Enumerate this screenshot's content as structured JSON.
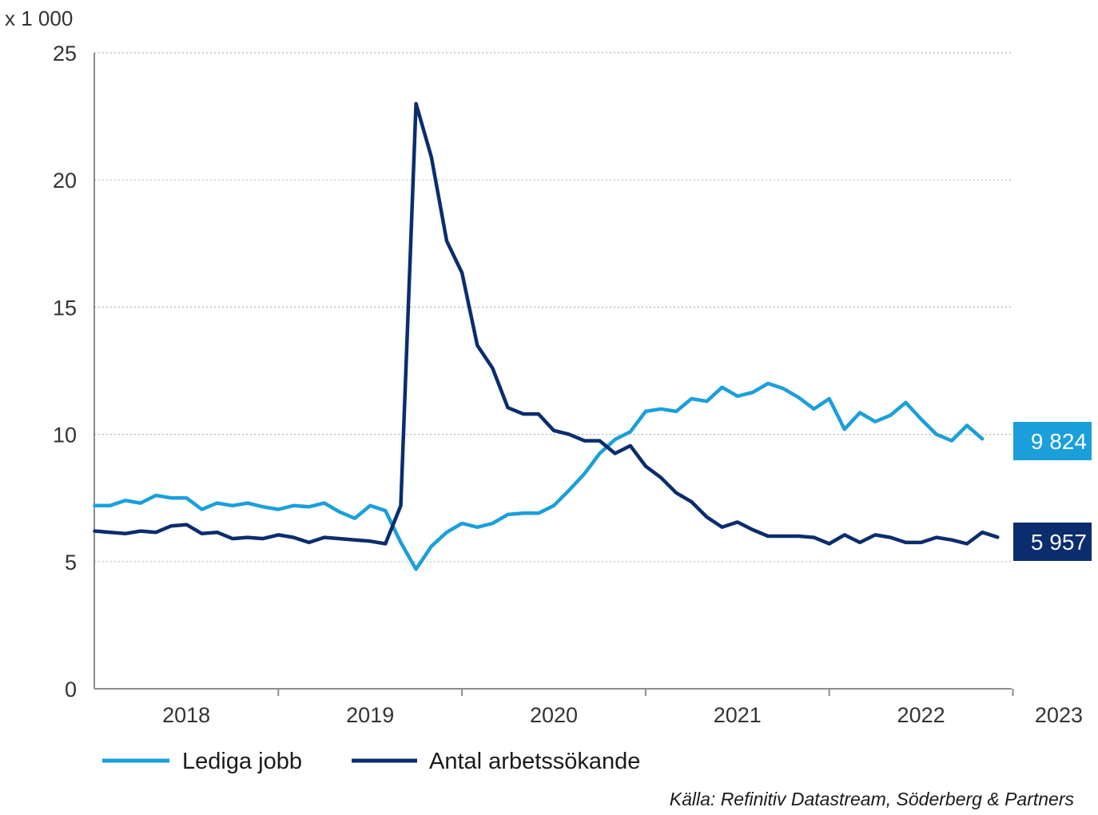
{
  "chart_data": {
    "type": "line",
    "unit_label": "x 1 000",
    "ylim": [
      0,
      25
    ],
    "y_ticks": [
      "0",
      "5",
      "10",
      "15",
      "20",
      "25"
    ],
    "x_ticks": [
      "2018",
      "2019",
      "2020",
      "2021",
      "2022",
      "2023"
    ],
    "grid": true,
    "legend_position": "bottom-left",
    "source": "Källa: Refinitiv Datastream, Söderberg & Partners",
    "start": "2018-01",
    "series": [
      {
        "name": "Lediga jobb",
        "color": "#1a9fdb",
        "end_label": "9 824",
        "values": [
          7.2,
          7.2,
          7.4,
          7.3,
          7.6,
          7.5,
          7.5,
          7.05,
          7.3,
          7.2,
          7.3,
          7.15,
          7.05,
          7.2,
          7.15,
          7.3,
          6.95,
          6.7,
          7.2,
          7.0,
          5.75,
          4.7,
          5.6,
          6.15,
          6.5,
          6.35,
          6.5,
          6.85,
          6.9,
          6.9,
          7.2,
          7.8,
          8.45,
          9.25,
          9.8,
          10.1,
          10.9,
          11.0,
          10.9,
          11.4,
          11.3,
          11.85,
          11.5,
          11.65,
          12.0,
          11.8,
          11.45,
          11.0,
          11.4,
          10.2,
          10.85,
          10.5,
          10.75,
          11.25,
          10.6,
          10.0,
          9.75,
          10.35,
          9.824
        ]
      },
      {
        "name": "Antal arbetssökande",
        "color": "#0b2d6e",
        "end_label": "5 957",
        "values": [
          6.2,
          6.15,
          6.1,
          6.2,
          6.15,
          6.4,
          6.45,
          6.1,
          6.15,
          5.9,
          5.95,
          5.9,
          6.05,
          5.95,
          5.75,
          5.95,
          5.9,
          5.85,
          5.8,
          5.7,
          7.2,
          23.0,
          20.9,
          17.6,
          16.35,
          13.5,
          12.6,
          11.05,
          10.8,
          10.8,
          10.15,
          10.0,
          9.75,
          9.75,
          9.25,
          9.55,
          8.75,
          8.3,
          7.7,
          7.35,
          6.75,
          6.35,
          6.55,
          6.25,
          6.0,
          6.0,
          6.0,
          5.95,
          5.7,
          6.05,
          5.75,
          6.05,
          5.95,
          5.75,
          5.75,
          5.95,
          5.85,
          5.7,
          6.15,
          5.957
        ]
      }
    ]
  }
}
